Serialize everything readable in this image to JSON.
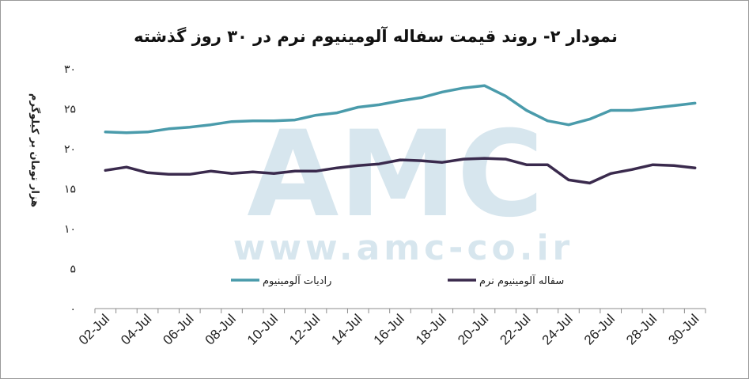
{
  "chart_data": {
    "type": "line",
    "title": "نمودار ۲- روند قیمت سفاله آلومینیوم نرم در ۳۰ روز گذشته",
    "ylabel": "هزار تومان بر کیلوگرم",
    "xlabel": "",
    "ylim": [
      0,
      30
    ],
    "yticks": [
      "۰",
      "۵",
      "۱۰",
      "۱۵",
      "۲۰",
      "۲۵",
      "۳۰"
    ],
    "categories": [
      "02-Jul",
      "03-Jul",
      "04-Jul",
      "05-Jul",
      "06-Jul",
      "07-Jul",
      "08-Jul",
      "09-Jul",
      "10-Jul",
      "11-Jul",
      "12-Jul",
      "13-Jul",
      "14-Jul",
      "15-Jul",
      "16-Jul",
      "17-Jul",
      "18-Jul",
      "19-Jul",
      "20-Jul",
      "21-Jul",
      "22-Jul",
      "23-Jul",
      "24-Jul",
      "25-Jul",
      "26-Jul",
      "27-Jul",
      "28-Jul",
      "29-Jul",
      "30-Jul"
    ],
    "xtick_labels": [
      "02-Jul",
      "04-Jul",
      "06-Jul",
      "08-Jul",
      "10-Jul",
      "12-Jul",
      "14-Jul",
      "16-Jul",
      "18-Jul",
      "20-Jul",
      "22-Jul",
      "24-Jul",
      "26-Jul",
      "28-Jul",
      "30-Jul"
    ],
    "series": [
      {
        "name": "رادیات آلومینیوم",
        "color": "#4a9bab",
        "values": [
          22.1,
          22.0,
          22.1,
          22.5,
          22.7,
          23.0,
          23.4,
          23.5,
          23.5,
          23.6,
          24.2,
          24.5,
          25.2,
          25.5,
          26.0,
          26.4,
          27.1,
          27.6,
          27.9,
          26.6,
          24.8,
          23.5,
          23.0,
          23.7,
          24.8,
          24.8,
          25.1,
          25.4,
          25.7
        ]
      },
      {
        "name": "سفاله آلومینیوم نرم",
        "color": "#3a2a4d",
        "values": [
          17.3,
          17.7,
          17.0,
          16.8,
          16.8,
          17.2,
          16.9,
          17.1,
          16.9,
          17.2,
          17.2,
          17.6,
          17.9,
          18.1,
          18.6,
          18.5,
          18.3,
          18.7,
          18.8,
          18.7,
          18.0,
          18.0,
          16.1,
          15.7,
          16.9,
          17.4,
          18.0,
          17.9,
          17.6
        ]
      }
    ],
    "legend_position": "inside-bottom",
    "grid": false
  },
  "watermark": {
    "logo_text": "AMC",
    "url_text": "www.amc-co.ir"
  }
}
